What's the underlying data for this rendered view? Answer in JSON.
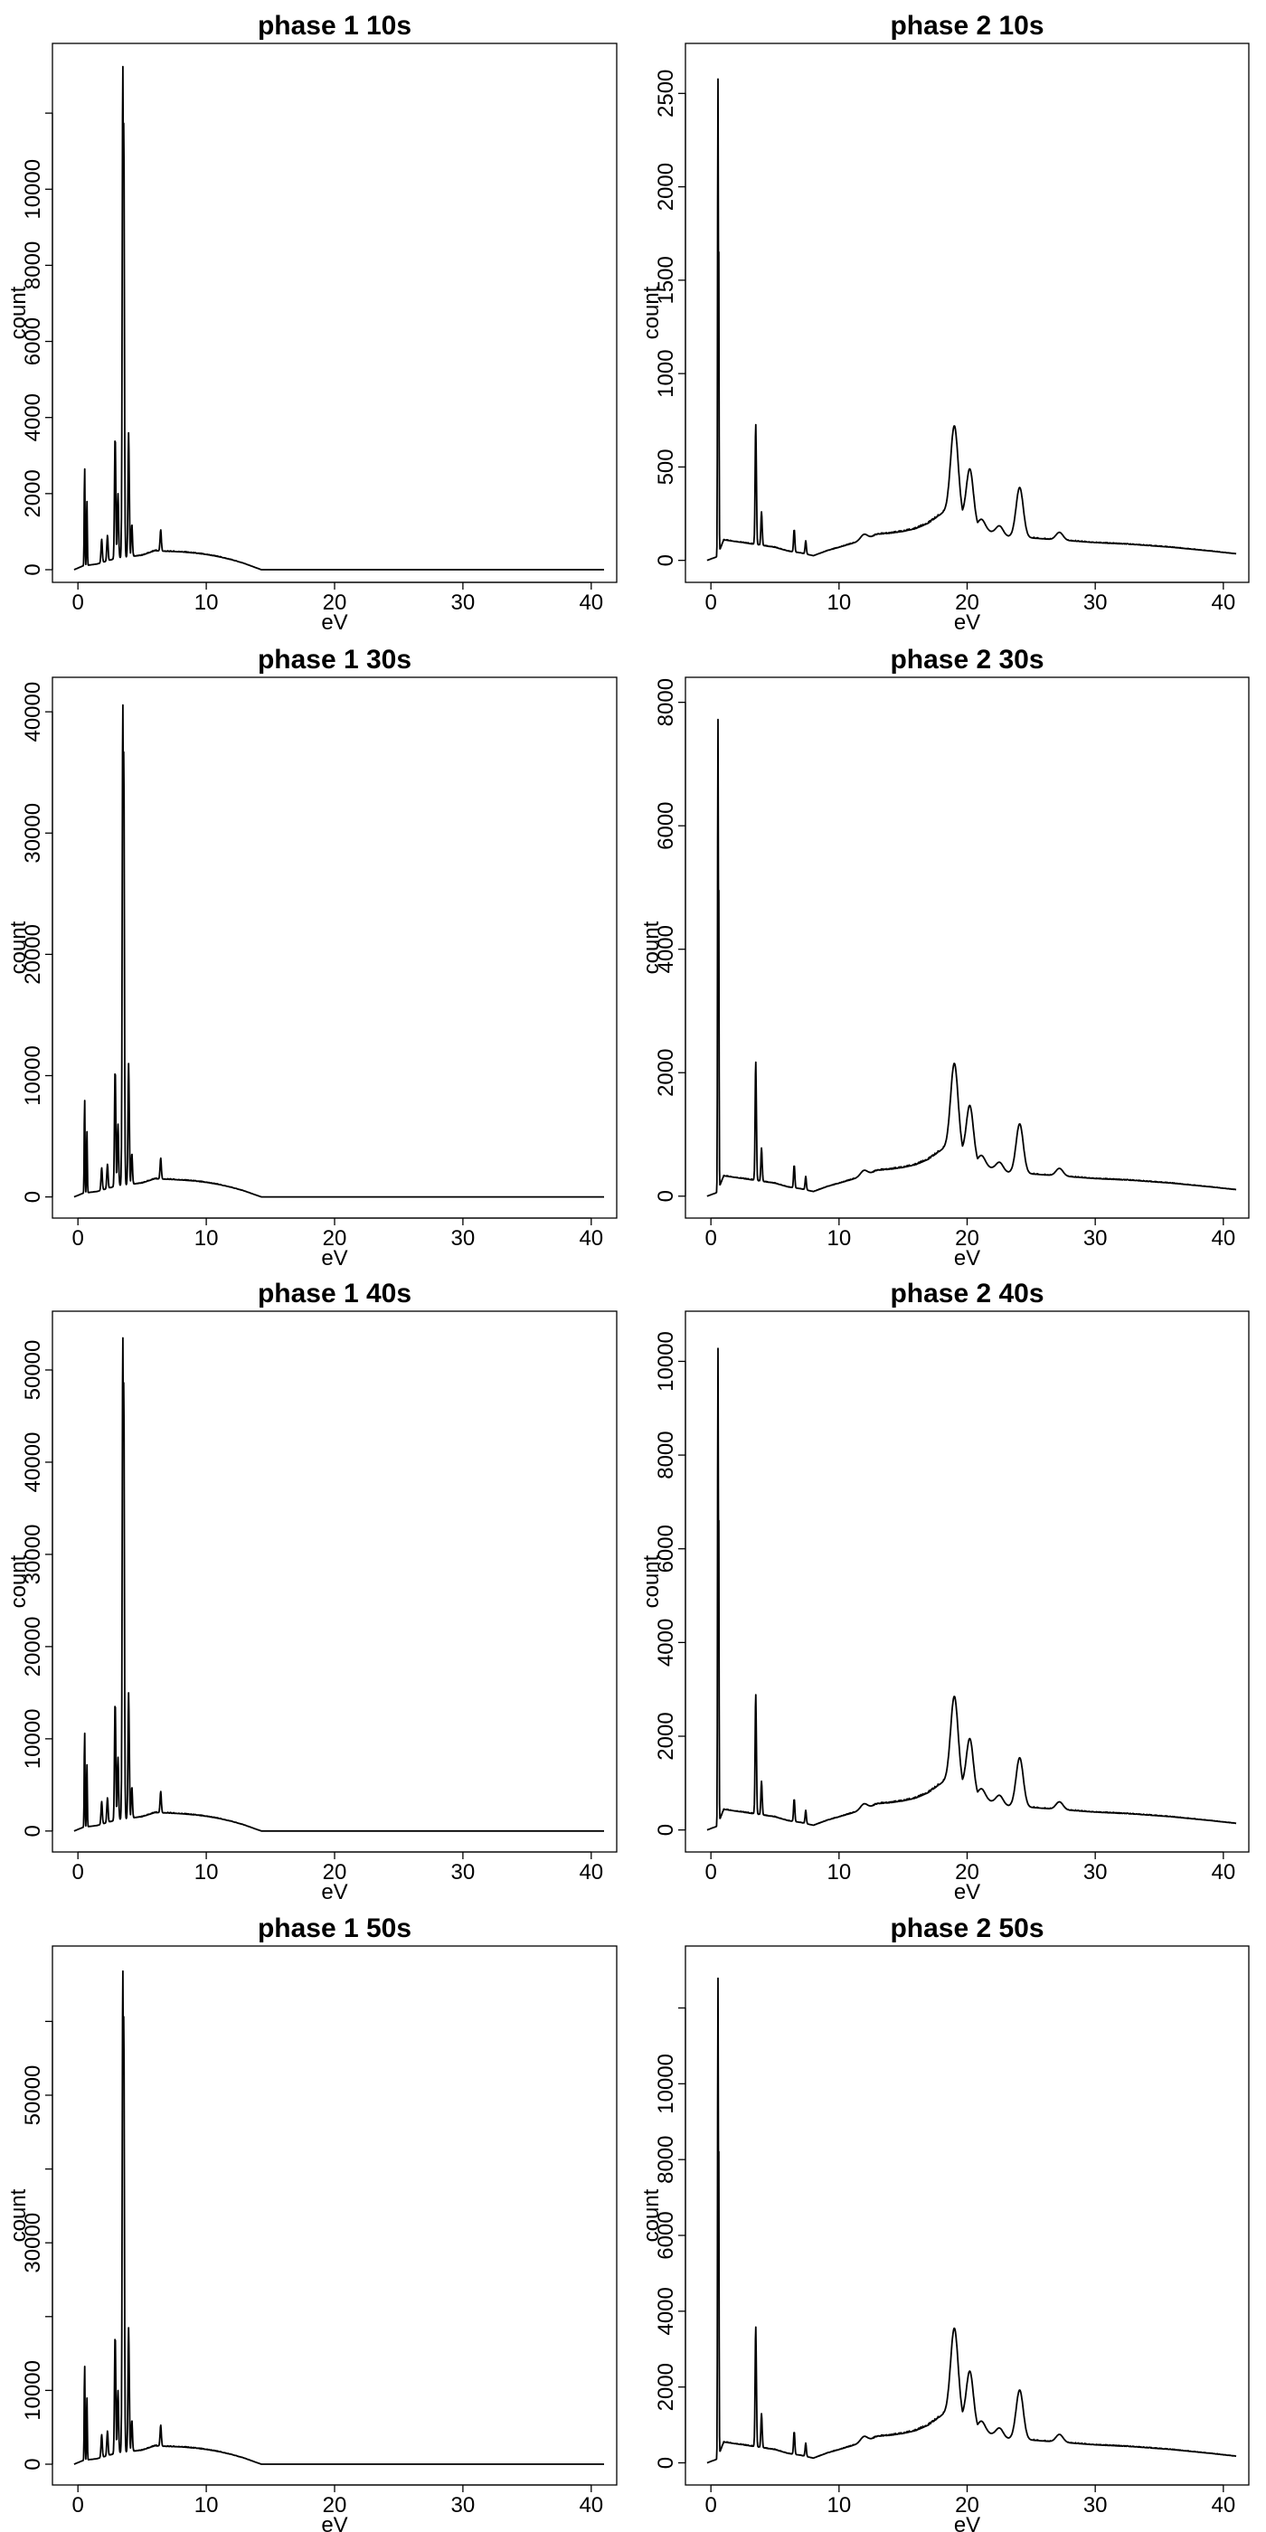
{
  "chart_data": [
    {
      "type": "line",
      "title": "phase 1 10s",
      "xlabel": "eV",
      "ylabel": "count",
      "xlim": [
        -1,
        41
      ],
      "ylim": [
        0,
        13500
      ],
      "xticks": [
        0,
        10,
        20,
        30,
        40
      ],
      "yticks": [
        0,
        2000,
        4000,
        6000,
        8000,
        10000
      ],
      "yticks_unlabeled": [
        12000
      ],
      "grid": false,
      "peaks": [
        {
          "x": 0.52,
          "y": 2700
        },
        {
          "x": 0.7,
          "y": 1800
        },
        {
          "x": 1.85,
          "y": 800
        },
        {
          "x": 2.3,
          "y": 900
        },
        {
          "x": 2.9,
          "y": 3500
        },
        {
          "x": 3.12,
          "y": 2000
        },
        {
          "x": 3.5,
          "y": 13300
        },
        {
          "x": 3.57,
          "y": 11800
        },
        {
          "x": 3.95,
          "y": 3600
        },
        {
          "x": 4.2,
          "y": 1200
        },
        {
          "x": 6.45,
          "y": 1050
        }
      ],
      "continuum": [
        [
          -0.3,
          0
        ],
        [
          0.4,
          100
        ],
        [
          1.5,
          150
        ],
        [
          3.0,
          300
        ],
        [
          5.0,
          380
        ],
        [
          6.0,
          500
        ],
        [
          7.0,
          480
        ],
        [
          8.0,
          470
        ],
        [
          9.0,
          440
        ],
        [
          10.0,
          400
        ],
        [
          11.0,
          340
        ],
        [
          12.0,
          260
        ],
        [
          13.0,
          160
        ],
        [
          13.8,
          60
        ],
        [
          14.3,
          0
        ],
        [
          41,
          0
        ]
      ]
    },
    {
      "type": "line",
      "title": "phase 2 10s",
      "xlabel": "eV",
      "ylabel": "count",
      "xlim": [
        -1,
        41
      ],
      "ylim": [
        -50,
        2700
      ],
      "xticks": [
        0,
        10,
        20,
        30,
        40
      ],
      "yticks": [
        0,
        500,
        1000,
        1500,
        2000,
        2500
      ],
      "grid": false,
      "peaks": [
        {
          "x": 0.55,
          "y": 2620
        },
        {
          "x": 0.6,
          "y": 1850
        },
        {
          "x": 3.5,
          "y": 730
        },
        {
          "x": 3.95,
          "y": 260
        },
        {
          "x": 6.5,
          "y": 165
        },
        {
          "x": 7.4,
          "y": 105
        },
        {
          "x": 12.0,
          "y": 140
        },
        {
          "x": 19.0,
          "y": 720
        },
        {
          "x": 20.2,
          "y": 490
        },
        {
          "x": 21.1,
          "y": 220
        },
        {
          "x": 22.5,
          "y": 185
        },
        {
          "x": 24.1,
          "y": 390
        },
        {
          "x": 27.2,
          "y": 150
        }
      ],
      "continuum": [
        [
          -0.3,
          0
        ],
        [
          0.5,
          20
        ],
        [
          1.0,
          110
        ],
        [
          2.0,
          100
        ],
        [
          3.0,
          90
        ],
        [
          5.0,
          70
        ],
        [
          6.0,
          50
        ],
        [
          7.0,
          40
        ],
        [
          8.0,
          25
        ],
        [
          9.0,
          50
        ],
        [
          10.0,
          70
        ],
        [
          11.0,
          90
        ],
        [
          12.0,
          110
        ],
        [
          13.0,
          140
        ],
        [
          14.0,
          145
        ],
        [
          15.0,
          155
        ],
        [
          16.0,
          170
        ],
        [
          17.0,
          200
        ],
        [
          18.0,
          250
        ],
        [
          19.0,
          300
        ],
        [
          20.0,
          200
        ],
        [
          21.0,
          170
        ],
        [
          23.0,
          130
        ],
        [
          25.0,
          120
        ],
        [
          27.0,
          110
        ],
        [
          30.0,
          95
        ],
        [
          33.0,
          85
        ],
        [
          36.0,
          70
        ],
        [
          39.0,
          50
        ],
        [
          41.0,
          35
        ]
      ]
    },
    {
      "type": "line",
      "title": "phase 1 30s",
      "xlabel": "eV",
      "ylabel": "count",
      "xlim": [
        -1,
        41
      ],
      "ylim": [
        -700,
        41800
      ],
      "xticks": [
        0,
        10,
        20,
        30,
        40
      ],
      "yticks": [
        0,
        10000,
        20000,
        30000,
        40000
      ],
      "grid": false,
      "peaks": [
        {
          "x": 0.52,
          "y": 8100
        },
        {
          "x": 0.7,
          "y": 5400
        },
        {
          "x": 1.85,
          "y": 2400
        },
        {
          "x": 2.3,
          "y": 2700
        },
        {
          "x": 2.9,
          "y": 10500
        },
        {
          "x": 3.12,
          "y": 6000
        },
        {
          "x": 3.5,
          "y": 40800
        },
        {
          "x": 3.57,
          "y": 36900
        },
        {
          "x": 3.95,
          "y": 11000
        },
        {
          "x": 4.2,
          "y": 3600
        },
        {
          "x": 6.45,
          "y": 3200
        }
      ],
      "continuum": [
        [
          -0.3,
          0
        ],
        [
          0.4,
          300
        ],
        [
          1.5,
          450
        ],
        [
          3.0,
          900
        ],
        [
          5.0,
          1150
        ],
        [
          6.0,
          1500
        ],
        [
          7.0,
          1450
        ],
        [
          8.0,
          1400
        ],
        [
          9.0,
          1320
        ],
        [
          10.0,
          1200
        ],
        [
          11.0,
          1020
        ],
        [
          12.0,
          780
        ],
        [
          13.0,
          480
        ],
        [
          13.8,
          180
        ],
        [
          14.3,
          0
        ],
        [
          41,
          0
        ]
      ]
    },
    {
      "type": "line",
      "title": "phase 2 30s",
      "xlabel": "eV",
      "ylabel": "count",
      "xlim": [
        -1,
        41
      ],
      "ylim": [
        -150,
        8200
      ],
      "xticks": [
        0,
        10,
        20,
        30,
        40
      ],
      "yticks": [
        0,
        2000,
        4000,
        6000,
        8000
      ],
      "grid": false,
      "peaks": [
        {
          "x": 0.55,
          "y": 7850
        },
        {
          "x": 0.6,
          "y": 5550
        },
        {
          "x": 3.5,
          "y": 2180
        },
        {
          "x": 3.95,
          "y": 780
        },
        {
          "x": 6.5,
          "y": 500
        },
        {
          "x": 7.4,
          "y": 320
        },
        {
          "x": 12.0,
          "y": 420
        },
        {
          "x": 19.0,
          "y": 2150
        },
        {
          "x": 20.2,
          "y": 1470
        },
        {
          "x": 21.1,
          "y": 660
        },
        {
          "x": 22.5,
          "y": 550
        },
        {
          "x": 24.1,
          "y": 1170
        },
        {
          "x": 27.2,
          "y": 450
        }
      ],
      "continuum": [
        [
          -0.3,
          0
        ],
        [
          0.5,
          60
        ],
        [
          1.0,
          330
        ],
        [
          2.0,
          300
        ],
        [
          3.0,
          270
        ],
        [
          5.0,
          210
        ],
        [
          6.0,
          150
        ],
        [
          7.0,
          120
        ],
        [
          8.0,
          75
        ],
        [
          9.0,
          150
        ],
        [
          10.0,
          210
        ],
        [
          11.0,
          270
        ],
        [
          12.0,
          330
        ],
        [
          13.0,
          420
        ],
        [
          14.0,
          435
        ],
        [
          15.0,
          465
        ],
        [
          16.0,
          510
        ],
        [
          17.0,
          600
        ],
        [
          18.0,
          750
        ],
        [
          19.0,
          900
        ],
        [
          20.0,
          600
        ],
        [
          21.0,
          510
        ],
        [
          23.0,
          390
        ],
        [
          25.0,
          360
        ],
        [
          27.0,
          330
        ],
        [
          30.0,
          285
        ],
        [
          33.0,
          255
        ],
        [
          36.0,
          210
        ],
        [
          39.0,
          150
        ],
        [
          41.0,
          105
        ]
      ]
    },
    {
      "type": "line",
      "title": "phase 1 40s",
      "xlabel": "eV",
      "ylabel": "count",
      "xlim": [
        -1,
        41
      ],
      "ylim": [
        -900,
        55000
      ],
      "xticks": [
        0,
        10,
        20,
        30,
        40
      ],
      "yticks": [
        0,
        10000,
        20000,
        30000,
        40000,
        50000
      ],
      "grid": false,
      "peaks": [
        {
          "x": 0.52,
          "y": 10800
        },
        {
          "x": 0.7,
          "y": 7200
        },
        {
          "x": 1.85,
          "y": 3200
        },
        {
          "x": 2.3,
          "y": 3600
        },
        {
          "x": 2.9,
          "y": 14000
        },
        {
          "x": 3.12,
          "y": 8000
        },
        {
          "x": 3.5,
          "y": 53800
        },
        {
          "x": 3.57,
          "y": 48900
        },
        {
          "x": 3.95,
          "y": 15000
        },
        {
          "x": 4.2,
          "y": 4800
        },
        {
          "x": 6.45,
          "y": 4300
        }
      ],
      "continuum": [
        [
          -0.3,
          0
        ],
        [
          0.4,
          400
        ],
        [
          1.5,
          600
        ],
        [
          3.0,
          1200
        ],
        [
          5.0,
          1550
        ],
        [
          6.0,
          2000
        ],
        [
          7.0,
          1950
        ],
        [
          8.0,
          1880
        ],
        [
          9.0,
          1760
        ],
        [
          10.0,
          1600
        ],
        [
          11.0,
          1360
        ],
        [
          12.0,
          1040
        ],
        [
          13.0,
          640
        ],
        [
          13.8,
          240
        ],
        [
          14.3,
          0
        ],
        [
          41,
          0
        ]
      ]
    },
    {
      "type": "line",
      "title": "phase 2 40s",
      "xlabel": "eV",
      "ylabel": "count",
      "xlim": [
        -1,
        41
      ],
      "ylim": [
        -200,
        10800
      ],
      "xticks": [
        0,
        10,
        20,
        30,
        40
      ],
      "yticks": [
        0,
        2000,
        4000,
        6000,
        8000,
        10000
      ],
      "grid": false,
      "peaks": [
        {
          "x": 0.55,
          "y": 10450
        },
        {
          "x": 0.6,
          "y": 7400
        },
        {
          "x": 3.5,
          "y": 2900
        },
        {
          "x": 3.95,
          "y": 1040
        },
        {
          "x": 6.5,
          "y": 660
        },
        {
          "x": 7.4,
          "y": 420
        },
        {
          "x": 12.0,
          "y": 560
        },
        {
          "x": 19.0,
          "y": 2850
        },
        {
          "x": 20.2,
          "y": 1950
        },
        {
          "x": 21.1,
          "y": 880
        },
        {
          "x": 22.5,
          "y": 740
        },
        {
          "x": 24.1,
          "y": 1540
        },
        {
          "x": 27.2,
          "y": 600
        }
      ],
      "continuum": [
        [
          -0.3,
          0
        ],
        [
          0.5,
          80
        ],
        [
          1.0,
          440
        ],
        [
          2.0,
          400
        ],
        [
          3.0,
          360
        ],
        [
          5.0,
          280
        ],
        [
          6.0,
          200
        ],
        [
          7.0,
          160
        ],
        [
          8.0,
          100
        ],
        [
          9.0,
          200
        ],
        [
          10.0,
          280
        ],
        [
          11.0,
          360
        ],
        [
          12.0,
          440
        ],
        [
          13.0,
          560
        ],
        [
          14.0,
          580
        ],
        [
          15.0,
          620
        ],
        [
          16.0,
          680
        ],
        [
          17.0,
          800
        ],
        [
          18.0,
          1000
        ],
        [
          19.0,
          1200
        ],
        [
          20.0,
          800
        ],
        [
          21.0,
          680
        ],
        [
          23.0,
          520
        ],
        [
          25.0,
          480
        ],
        [
          27.0,
          440
        ],
        [
          30.0,
          380
        ],
        [
          33.0,
          340
        ],
        [
          36.0,
          280
        ],
        [
          39.0,
          200
        ],
        [
          41.0,
          140
        ]
      ]
    },
    {
      "type": "line",
      "title": "phase 1 50s",
      "xlabel": "eV",
      "ylabel": "count",
      "xlim": [
        -1,
        41
      ],
      "ylim": [
        -1100,
        68500
      ],
      "xticks": [
        0,
        10,
        20,
        30,
        40
      ],
      "yticks": [
        0,
        10000,
        30000,
        50000
      ],
      "yticks_unlabeled": [
        20000,
        40000,
        60000
      ],
      "grid": false,
      "peaks": [
        {
          "x": 0.52,
          "y": 13500
        },
        {
          "x": 0.7,
          "y": 9000
        },
        {
          "x": 1.85,
          "y": 4000
        },
        {
          "x": 2.3,
          "y": 4500
        },
        {
          "x": 2.9,
          "y": 17500
        },
        {
          "x": 3.12,
          "y": 10000
        },
        {
          "x": 3.5,
          "y": 67200
        },
        {
          "x": 3.57,
          "y": 61000
        },
        {
          "x": 3.95,
          "y": 18500
        },
        {
          "x": 4.2,
          "y": 6000
        },
        {
          "x": 6.45,
          "y": 5300
        }
      ],
      "continuum": [
        [
          -0.3,
          0
        ],
        [
          0.4,
          500
        ],
        [
          1.5,
          750
        ],
        [
          3.0,
          1500
        ],
        [
          5.0,
          1900
        ],
        [
          6.0,
          2500
        ],
        [
          7.0,
          2400
        ],
        [
          8.0,
          2350
        ],
        [
          9.0,
          2200
        ],
        [
          10.0,
          2000
        ],
        [
          11.0,
          1700
        ],
        [
          12.0,
          1300
        ],
        [
          13.0,
          800
        ],
        [
          13.8,
          300
        ],
        [
          14.3,
          0
        ],
        [
          41,
          0
        ]
      ]
    },
    {
      "type": "line",
      "title": "phase 2 50s",
      "xlabel": "eV",
      "ylabel": "count",
      "xlim": [
        -1,
        41
      ],
      "ylim": [
        -250,
        13300
      ],
      "xticks": [
        0,
        10,
        20,
        30,
        40
      ],
      "yticks": [
        0,
        2000,
        4000,
        6000,
        8000,
        10000
      ],
      "yticks_unlabeled": [
        12000
      ],
      "grid": false,
      "peaks": [
        {
          "x": 0.55,
          "y": 13000
        },
        {
          "x": 0.6,
          "y": 9200
        },
        {
          "x": 3.5,
          "y": 3600
        },
        {
          "x": 3.95,
          "y": 1300
        },
        {
          "x": 6.5,
          "y": 820
        },
        {
          "x": 7.4,
          "y": 520
        },
        {
          "x": 12.0,
          "y": 700
        },
        {
          "x": 19.0,
          "y": 3550
        },
        {
          "x": 20.2,
          "y": 2420
        },
        {
          "x": 21.1,
          "y": 1100
        },
        {
          "x": 22.5,
          "y": 920
        },
        {
          "x": 24.1,
          "y": 1920
        },
        {
          "x": 27.2,
          "y": 750
        }
      ],
      "continuum": [
        [
          -0.3,
          0
        ],
        [
          0.5,
          100
        ],
        [
          1.0,
          550
        ],
        [
          2.0,
          500
        ],
        [
          3.0,
          450
        ],
        [
          5.0,
          350
        ],
        [
          6.0,
          250
        ],
        [
          7.0,
          200
        ],
        [
          8.0,
          125
        ],
        [
          9.0,
          250
        ],
        [
          10.0,
          350
        ],
        [
          11.0,
          450
        ],
        [
          12.0,
          550
        ],
        [
          13.0,
          700
        ],
        [
          14.0,
          725
        ],
        [
          15.0,
          775
        ],
        [
          16.0,
          850
        ],
        [
          17.0,
          1000
        ],
        [
          18.0,
          1250
        ],
        [
          19.0,
          1500
        ],
        [
          20.0,
          1000
        ],
        [
          21.0,
          850
        ],
        [
          23.0,
          650
        ],
        [
          25.0,
          600
        ],
        [
          27.0,
          550
        ],
        [
          30.0,
          475
        ],
        [
          33.0,
          425
        ],
        [
          36.0,
          350
        ],
        [
          39.0,
          250
        ],
        [
          41.0,
          175
        ]
      ]
    }
  ]
}
